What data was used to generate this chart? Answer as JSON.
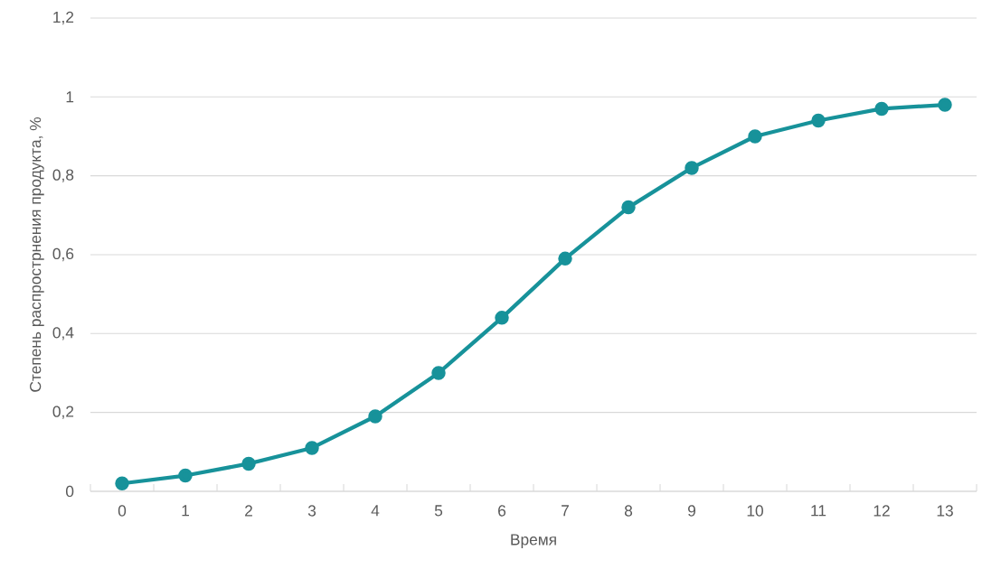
{
  "chart_data": {
    "type": "line",
    "xlabel": "Время",
    "ylabel": "Степень распрострнения продукта, %",
    "categories": [
      "0",
      "1",
      "2",
      "3",
      "4",
      "5",
      "6",
      "7",
      "8",
      "9",
      "10",
      "11",
      "12",
      "13"
    ],
    "series": [
      {
        "color": "#17929a",
        "values": [
          0.02,
          0.04,
          0.07,
          0.11,
          0.19,
          0.3,
          0.44,
          0.59,
          0.72,
          0.82,
          0.9,
          0.94,
          0.97,
          0.98
        ]
      }
    ],
    "ylim": [
      0,
      1.2
    ],
    "yticks": [
      0,
      {
        "value": 0.2,
        "label": "0,2"
      },
      {
        "value": 0.4,
        "label": "0,4"
      },
      {
        "value": 0.6,
        "label": "0,6"
      },
      {
        "value": 0.8,
        "label": "0,8"
      },
      1,
      {
        "value": 1.2,
        "label": "1,2"
      }
    ],
    "grid": "y",
    "marker": "circle",
    "line_style": "solid"
  }
}
